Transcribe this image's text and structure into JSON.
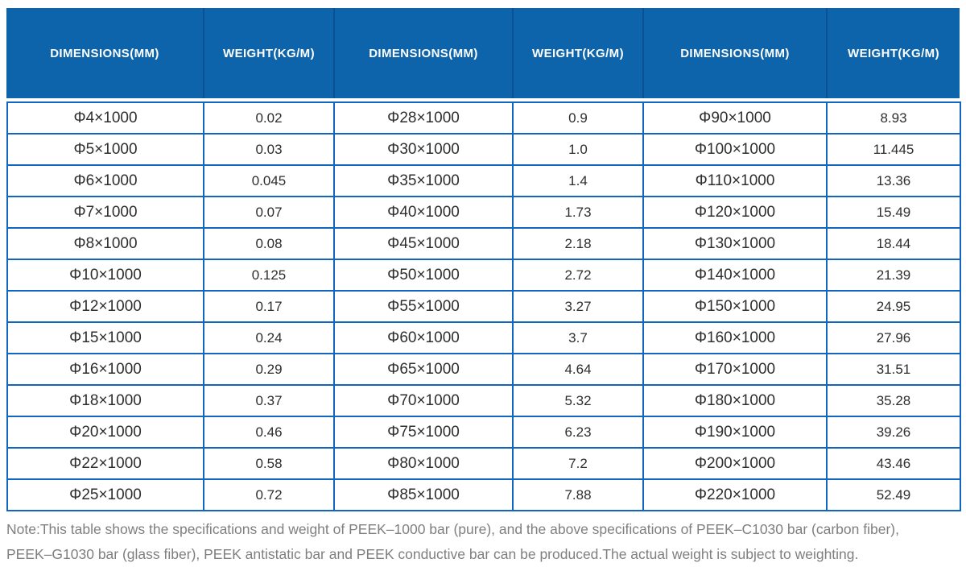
{
  "table": {
    "headers": [
      "DIMENSIONS(MM)",
      "WEIGHT(KG/M)",
      "DIMENSIONS(MM)",
      "WEIGHT(KG/M)",
      "DIMENSIONS(MM)",
      "WEIGHT(KG/M)"
    ],
    "rows": [
      [
        "Φ4×1000",
        "0.02",
        "Φ28×1000",
        "0.9",
        "Φ90×1000",
        "8.93"
      ],
      [
        "Φ5×1000",
        "0.03",
        "Φ30×1000",
        "1.0",
        "Φ100×1000",
        "11.445"
      ],
      [
        "Φ6×1000",
        "0.045",
        "Φ35×1000",
        "1.4",
        "Φ110×1000",
        "13.36"
      ],
      [
        "Φ7×1000",
        "0.07",
        "Φ40×1000",
        "1.73",
        "Φ120×1000",
        "15.49"
      ],
      [
        "Φ8×1000",
        "0.08",
        "Φ45×1000",
        "2.18",
        "Φ130×1000",
        "18.44"
      ],
      [
        "Φ10×1000",
        "0.125",
        "Φ50×1000",
        "2.72",
        "Φ140×1000",
        "21.39"
      ],
      [
        "Φ12×1000",
        "0.17",
        "Φ55×1000",
        "3.27",
        "Φ150×1000",
        "24.95"
      ],
      [
        "Φ15×1000",
        "0.24",
        "Φ60×1000",
        "3.7",
        "Φ160×1000",
        "27.96"
      ],
      [
        "Φ16×1000",
        "0.29",
        "Φ65×1000",
        "4.64",
        "Φ170×1000",
        "31.51"
      ],
      [
        "Φ18×1000",
        "0.37",
        "Φ70×1000",
        "5.32",
        "Φ180×1000",
        "35.28"
      ],
      [
        "Φ20×1000",
        "0.46",
        "Φ75×1000",
        "6.23",
        "Φ190×1000",
        "39.26"
      ],
      [
        "Φ22×1000",
        "0.58",
        "Φ80×1000",
        "7.2",
        "Φ200×1000",
        "43.46"
      ],
      [
        "Φ25×1000",
        "0.72",
        "Φ85×1000",
        "7.88",
        "Φ220×1000",
        "52.49"
      ]
    ]
  },
  "note": {
    "lines": [
      "Note:This table shows the specifications and weight of PEEK–1000 bar (pure), and the above specifications of PEEK–C1030 bar (carbon fiber),",
      "PEEK–G1030 bar (glass fiber), PEEK antistatic bar and PEEK conductive bar can be produced.The actual weight is subject to weighting."
    ]
  },
  "colors": {
    "header_bg": "#0e64ab",
    "header_separator": "#0a5191",
    "cell_border": "#1366c0",
    "cell_text": "#2e2e2e",
    "note_text": "#7f7f7f"
  }
}
